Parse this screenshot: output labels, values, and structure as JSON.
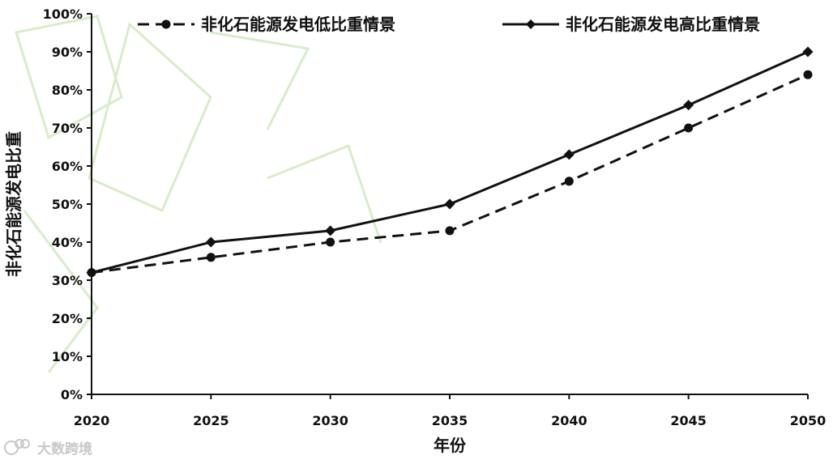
{
  "chart_data": {
    "type": "line",
    "xlabel": "年份",
    "ylabel": "非化石能源发电比重",
    "x": [
      "2020",
      "2025",
      "2030",
      "2035",
      "2040",
      "2045",
      "2050"
    ],
    "ylim": [
      0,
      100
    ],
    "yticks": [
      "0%",
      "10%",
      "20%",
      "30%",
      "40%",
      "50%",
      "60%",
      "70%",
      "80%",
      "90%",
      "100%"
    ],
    "grid": false,
    "legend_position": "top",
    "series": [
      {
        "name": "非化石能源发电低比重情景",
        "line_style": "dashed",
        "marker": "circle",
        "values": [
          32,
          36,
          40,
          43,
          56,
          70,
          84
        ]
      },
      {
        "name": "非化石能源发电高比重情景",
        "line_style": "solid",
        "marker": "diamond",
        "values": [
          32,
          40,
          43,
          50,
          63,
          76,
          90
        ]
      }
    ],
    "colors": {
      "line": "#111111",
      "axis": "#111111",
      "watermark": "#d9ecc9"
    }
  },
  "watermark": {
    "logo_text": "大数跨境"
  }
}
